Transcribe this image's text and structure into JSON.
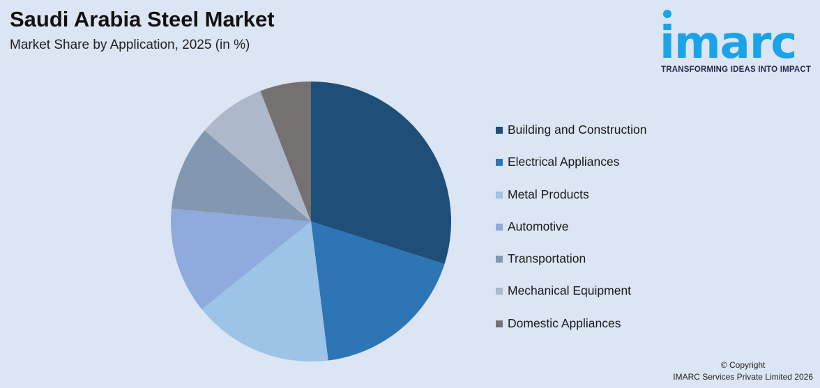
{
  "header": {
    "title": "Saudi Arabia Steel Market",
    "subtitle": "Market Share by Application, 2025 (in %)"
  },
  "logo": {
    "word": "imarc",
    "tagline": "TRANSFORMING IDEAS INTO IMPACT",
    "color": "#1aa3e8"
  },
  "chart_data": {
    "type": "pie",
    "title": "Saudi Arabia Steel Market",
    "subtitle": "Market Share by Application, 2025 (in %)",
    "legend_position": "right",
    "slices": [
      {
        "label": "Building and Construction",
        "value": 30.5,
        "color": "#1f4e79"
      },
      {
        "label": "Electrical Appliances",
        "value": 18.5,
        "color": "#2e75b6"
      },
      {
        "label": "Metal Products",
        "value": 16.5,
        "color": "#9dc3e6"
      },
      {
        "label": "Automotive",
        "value": 12.5,
        "color": "#8faadc"
      },
      {
        "label": "Transportation",
        "value": 10.0,
        "color": "#8497b0"
      },
      {
        "label": "Mechanical Equipment",
        "value": 8.0,
        "color": "#adb9ca"
      },
      {
        "label": "Domestic Appliances",
        "value": 6.0,
        "color": "#767171"
      }
    ]
  },
  "footer": {
    "copyright_line1": "© Copyright",
    "copyright_line2": "IMARC Services Private Limited 2026"
  }
}
